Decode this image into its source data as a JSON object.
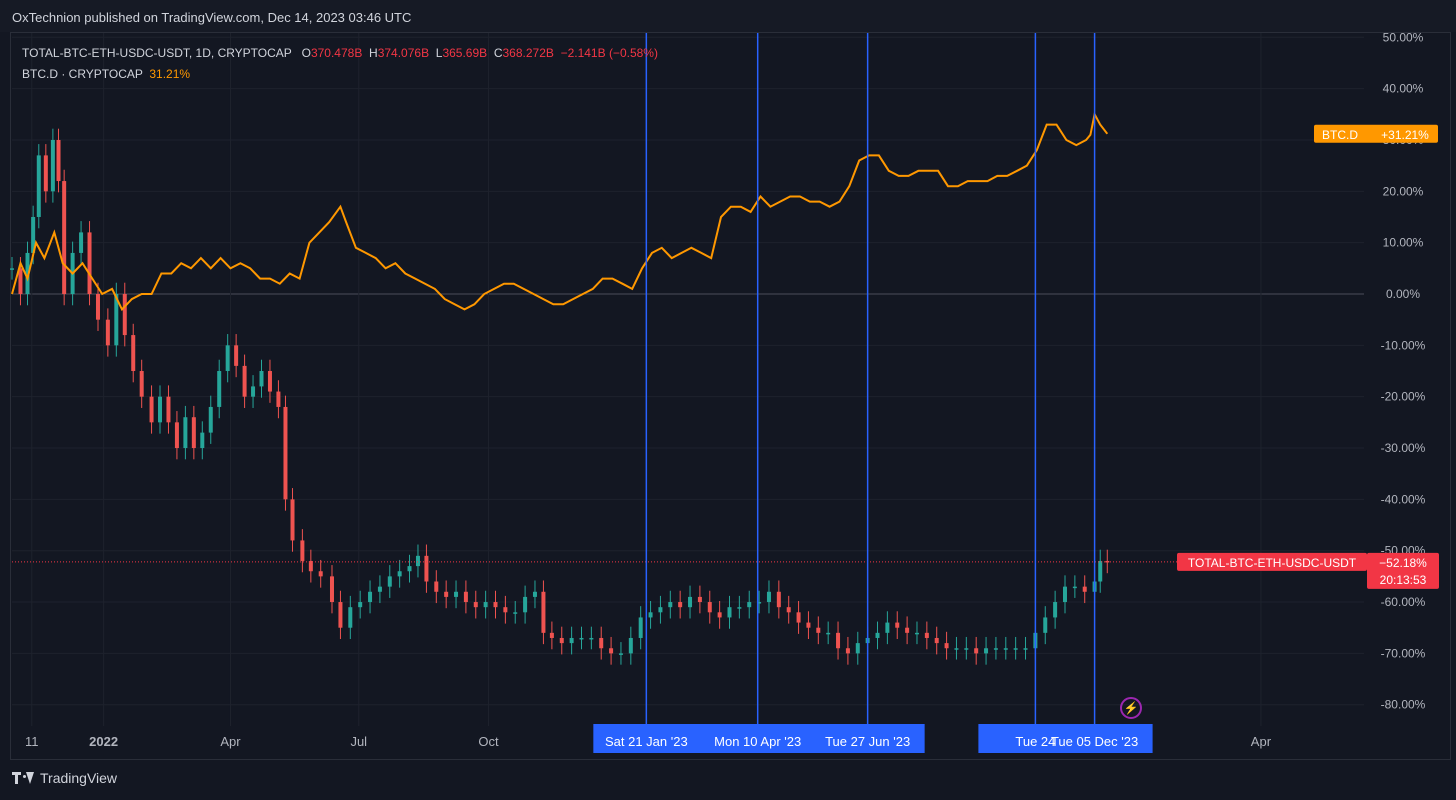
{
  "header": {
    "publisher_line": "OxTechnion published on TradingView.com, Dec 14, 2023 03:46 UTC"
  },
  "legend": {
    "main_symbol": "TOTAL-BTC-ETH-USDC-USDT, 1D, CRYPTOCAP",
    "o_label": "O",
    "o_value": "370.478B",
    "h_label": "H",
    "h_value": "374.076B",
    "l_label": "L",
    "l_value": "365.69B",
    "c_label": "C",
    "c_value": "368.272B",
    "change": "−2.141B (−0.58%)",
    "second_symbol": "BTC.D · CRYPTOCAP",
    "second_value": "31.21%"
  },
  "footer": {
    "brand": "TradingView",
    "flash_icon": "lightning-icon"
  },
  "colors": {
    "background": "#131722",
    "grid": "#1e222d",
    "btcd_line": "#ff9800",
    "up": "#26a69a",
    "down": "#ef5350",
    "marker": "#2962ff",
    "price_tag": "#f23645"
  },
  "chart_data": {
    "type": "line",
    "y_axis": {
      "scale": "percent",
      "ylim": [
        -85,
        50
      ],
      "ticks": [
        "50.00%",
        "40.00%",
        "30.00%",
        "20.00%",
        "10.00%",
        "0.00%",
        "-10.00%",
        "-20.00%",
        "-30.00%",
        "-40.00%",
        "-50.00%",
        "-60.00%",
        "-70.00%",
        "-80.00%"
      ],
      "tick_values": [
        50,
        40,
        30,
        20,
        10,
        0,
        -10,
        -20,
        -30,
        -40,
        -50,
        -60,
        -70,
        -80
      ]
    },
    "x_axis": {
      "range": [
        "2021-10-28",
        "2024-05-20"
      ],
      "ticks": [
        {
          "label": "11",
          "date": "2021-11-11"
        },
        {
          "label": "2022",
          "date": "2022-01-01"
        },
        {
          "label": "Apr",
          "date": "2022-04-01"
        },
        {
          "label": "Jul",
          "date": "2022-07-01"
        },
        {
          "label": "Oct",
          "date": "2022-10-01"
        },
        {
          "label": "Apr",
          "date": "2024-04-01"
        }
      ]
    },
    "grid": true,
    "series": [
      {
        "name": "BTC.D",
        "color": "#ff9800",
        "last_value_label": "+31.21%",
        "points": [
          [
            "2021-10-28",
            0
          ],
          [
            "2021-11-03",
            6
          ],
          [
            "2021-11-08",
            3
          ],
          [
            "2021-11-14",
            10
          ],
          [
            "2021-11-20",
            7
          ],
          [
            "2021-11-27",
            12
          ],
          [
            "2021-12-03",
            6
          ],
          [
            "2021-12-10",
            4
          ],
          [
            "2021-12-17",
            6
          ],
          [
            "2021-12-24",
            3
          ],
          [
            "2021-12-31",
            0
          ],
          [
            "2022-01-07",
            1
          ],
          [
            "2022-01-14",
            -3
          ],
          [
            "2022-01-21",
            -1
          ],
          [
            "2022-01-28",
            0
          ],
          [
            "2022-02-04",
            0
          ],
          [
            "2022-02-11",
            4
          ],
          [
            "2022-02-18",
            4
          ],
          [
            "2022-02-25",
            6
          ],
          [
            "2022-03-04",
            5
          ],
          [
            "2022-03-11",
            7
          ],
          [
            "2022-03-18",
            5
          ],
          [
            "2022-03-25",
            7
          ],
          [
            "2022-04-01",
            5
          ],
          [
            "2022-04-08",
            6
          ],
          [
            "2022-04-15",
            5
          ],
          [
            "2022-04-22",
            3
          ],
          [
            "2022-04-29",
            3
          ],
          [
            "2022-05-06",
            2
          ],
          [
            "2022-05-13",
            4
          ],
          [
            "2022-05-20",
            3
          ],
          [
            "2022-05-27",
            10
          ],
          [
            "2022-06-03",
            12
          ],
          [
            "2022-06-10",
            14
          ],
          [
            "2022-06-18",
            17
          ],
          [
            "2022-06-22",
            14
          ],
          [
            "2022-06-29",
            9
          ],
          [
            "2022-07-06",
            8
          ],
          [
            "2022-07-13",
            7
          ],
          [
            "2022-07-20",
            5
          ],
          [
            "2022-07-27",
            6
          ],
          [
            "2022-08-03",
            4
          ],
          [
            "2022-08-10",
            3
          ],
          [
            "2022-08-17",
            2
          ],
          [
            "2022-08-24",
            1
          ],
          [
            "2022-08-31",
            -1
          ],
          [
            "2022-09-07",
            -2
          ],
          [
            "2022-09-14",
            -3
          ],
          [
            "2022-09-21",
            -2
          ],
          [
            "2022-09-28",
            0
          ],
          [
            "2022-10-05",
            1
          ],
          [
            "2022-10-12",
            2
          ],
          [
            "2022-10-19",
            2
          ],
          [
            "2022-10-26",
            1
          ],
          [
            "2022-11-02",
            0
          ],
          [
            "2022-11-09",
            -1
          ],
          [
            "2022-11-16",
            -2
          ],
          [
            "2022-11-23",
            -2
          ],
          [
            "2022-11-30",
            -1
          ],
          [
            "2022-12-07",
            0
          ],
          [
            "2022-12-14",
            1
          ],
          [
            "2022-12-21",
            3
          ],
          [
            "2022-12-28",
            3
          ],
          [
            "2023-01-04",
            2
          ],
          [
            "2023-01-11",
            1
          ],
          [
            "2023-01-18",
            5
          ],
          [
            "2023-01-25",
            8
          ],
          [
            "2023-02-01",
            9
          ],
          [
            "2023-02-08",
            7
          ],
          [
            "2023-02-15",
            8
          ],
          [
            "2023-02-22",
            9
          ],
          [
            "2023-03-01",
            8
          ],
          [
            "2023-03-08",
            7
          ],
          [
            "2023-03-15",
            15
          ],
          [
            "2023-03-22",
            17
          ],
          [
            "2023-03-29",
            17
          ],
          [
            "2023-04-05",
            16
          ],
          [
            "2023-04-12",
            19
          ],
          [
            "2023-04-19",
            17
          ],
          [
            "2023-04-26",
            18
          ],
          [
            "2023-05-03",
            19
          ],
          [
            "2023-05-10",
            19
          ],
          [
            "2023-05-17",
            18
          ],
          [
            "2023-05-24",
            18
          ],
          [
            "2023-05-31",
            17
          ],
          [
            "2023-06-07",
            18
          ],
          [
            "2023-06-14",
            21
          ],
          [
            "2023-06-21",
            26
          ],
          [
            "2023-06-28",
            27
          ],
          [
            "2023-07-05",
            27
          ],
          [
            "2023-07-12",
            24
          ],
          [
            "2023-07-19",
            23
          ],
          [
            "2023-07-26",
            23
          ],
          [
            "2023-08-02",
            24
          ],
          [
            "2023-08-09",
            24
          ],
          [
            "2023-08-16",
            24
          ],
          [
            "2023-08-23",
            21
          ],
          [
            "2023-08-30",
            21
          ],
          [
            "2023-09-06",
            22
          ],
          [
            "2023-09-13",
            22
          ],
          [
            "2023-09-20",
            22
          ],
          [
            "2023-09-27",
            23
          ],
          [
            "2023-10-04",
            23
          ],
          [
            "2023-10-11",
            24
          ],
          [
            "2023-10-18",
            25
          ],
          [
            "2023-10-25",
            28
          ],
          [
            "2023-11-01",
            33
          ],
          [
            "2023-11-08",
            33
          ],
          [
            "2023-11-15",
            30
          ],
          [
            "2023-11-22",
            29
          ],
          [
            "2023-11-29",
            30
          ],
          [
            "2023-12-02",
            31
          ],
          [
            "2023-12-05",
            35
          ],
          [
            "2023-12-09",
            33
          ],
          [
            "2023-12-14",
            31.21
          ]
        ]
      },
      {
        "name": "TOTAL-BTC-ETH-USDC-USDT",
        "type": "candlestick_close",
        "up_color": "#26a69a",
        "down_color": "#ef5350",
        "last_value_label": "−52.18%",
        "countdown": "20:13:53",
        "points": [
          [
            "2021-10-28",
            5
          ],
          [
            "2021-11-03",
            0
          ],
          [
            "2021-11-08",
            8
          ],
          [
            "2021-11-12",
            15
          ],
          [
            "2021-11-16",
            27
          ],
          [
            "2021-11-21",
            20
          ],
          [
            "2021-11-26",
            30
          ],
          [
            "2021-11-30",
            22
          ],
          [
            "2021-12-04",
            0
          ],
          [
            "2021-12-10",
            8
          ],
          [
            "2021-12-16",
            12
          ],
          [
            "2021-12-22",
            0
          ],
          [
            "2021-12-28",
            -5
          ],
          [
            "2022-01-04",
            -10
          ],
          [
            "2022-01-10",
            0
          ],
          [
            "2022-01-16",
            -8
          ],
          [
            "2022-01-22",
            -15
          ],
          [
            "2022-01-28",
            -20
          ],
          [
            "2022-02-04",
            -25
          ],
          [
            "2022-02-10",
            -20
          ],
          [
            "2022-02-16",
            -25
          ],
          [
            "2022-02-22",
            -30
          ],
          [
            "2022-02-28",
            -24
          ],
          [
            "2022-03-06",
            -30
          ],
          [
            "2022-03-12",
            -27
          ],
          [
            "2022-03-18",
            -22
          ],
          [
            "2022-03-24",
            -15
          ],
          [
            "2022-03-30",
            -10
          ],
          [
            "2022-04-05",
            -14
          ],
          [
            "2022-04-11",
            -20
          ],
          [
            "2022-04-17",
            -18
          ],
          [
            "2022-04-23",
            -15
          ],
          [
            "2022-04-29",
            -19
          ],
          [
            "2022-05-05",
            -22
          ],
          [
            "2022-05-10",
            -40
          ],
          [
            "2022-05-15",
            -48
          ],
          [
            "2022-05-22",
            -52
          ],
          [
            "2022-05-28",
            -54
          ],
          [
            "2022-06-04",
            -55
          ],
          [
            "2022-06-12",
            -60
          ],
          [
            "2022-06-18",
            -65
          ],
          [
            "2022-06-25",
            -61
          ],
          [
            "2022-07-02",
            -60
          ],
          [
            "2022-07-09",
            -58
          ],
          [
            "2022-07-16",
            -57
          ],
          [
            "2022-07-23",
            -55
          ],
          [
            "2022-07-30",
            -54
          ],
          [
            "2022-08-06",
            -53
          ],
          [
            "2022-08-12",
            -51
          ],
          [
            "2022-08-18",
            -56
          ],
          [
            "2022-08-25",
            -58
          ],
          [
            "2022-09-01",
            -59
          ],
          [
            "2022-09-08",
            -58
          ],
          [
            "2022-09-15",
            -60
          ],
          [
            "2022-09-22",
            -61
          ],
          [
            "2022-09-29",
            -60
          ],
          [
            "2022-10-06",
            -61
          ],
          [
            "2022-10-13",
            -62
          ],
          [
            "2022-10-20",
            -62
          ],
          [
            "2022-10-27",
            -59
          ],
          [
            "2022-11-03",
            -58
          ],
          [
            "2022-11-09",
            -66
          ],
          [
            "2022-11-15",
            -67
          ],
          [
            "2022-11-22",
            -68
          ],
          [
            "2022-11-29",
            -67
          ],
          [
            "2022-12-06",
            -67
          ],
          [
            "2022-12-13",
            -67
          ],
          [
            "2022-12-20",
            -69
          ],
          [
            "2022-12-27",
            -70
          ],
          [
            "2023-01-03",
            -70
          ],
          [
            "2023-01-10",
            -67
          ],
          [
            "2023-01-17",
            -63
          ],
          [
            "2023-01-24",
            -62
          ],
          [
            "2023-01-31",
            -61
          ],
          [
            "2023-02-07",
            -60
          ],
          [
            "2023-02-14",
            -61
          ],
          [
            "2023-02-21",
            -59
          ],
          [
            "2023-02-28",
            -60
          ],
          [
            "2023-03-07",
            -62
          ],
          [
            "2023-03-14",
            -63
          ],
          [
            "2023-03-21",
            -61
          ],
          [
            "2023-03-28",
            -61
          ],
          [
            "2023-04-04",
            -60
          ],
          [
            "2023-04-11",
            -60
          ],
          [
            "2023-04-18",
            -58
          ],
          [
            "2023-04-25",
            -61
          ],
          [
            "2023-05-02",
            -62
          ],
          [
            "2023-05-09",
            -64
          ],
          [
            "2023-05-16",
            -65
          ],
          [
            "2023-05-23",
            -66
          ],
          [
            "2023-05-30",
            -66
          ],
          [
            "2023-06-06",
            -69
          ],
          [
            "2023-06-13",
            -70
          ],
          [
            "2023-06-20",
            -68
          ],
          [
            "2023-06-27",
            -67
          ],
          [
            "2023-07-04",
            -66
          ],
          [
            "2023-07-11",
            -64
          ],
          [
            "2023-07-18",
            -65
          ],
          [
            "2023-07-25",
            -66
          ],
          [
            "2023-08-01",
            -66
          ],
          [
            "2023-08-08",
            -67
          ],
          [
            "2023-08-15",
            -68
          ],
          [
            "2023-08-22",
            -69
          ],
          [
            "2023-08-29",
            -69
          ],
          [
            "2023-09-05",
            -69
          ],
          [
            "2023-09-12",
            -70
          ],
          [
            "2023-09-19",
            -69
          ],
          [
            "2023-09-26",
            -69
          ],
          [
            "2023-10-03",
            -69
          ],
          [
            "2023-10-10",
            -69
          ],
          [
            "2023-10-17",
            -69
          ],
          [
            "2023-10-24",
            -66
          ],
          [
            "2023-10-31",
            -63
          ],
          [
            "2023-11-07",
            -60
          ],
          [
            "2023-11-14",
            -57
          ],
          [
            "2023-11-21",
            -57
          ],
          [
            "2023-11-28",
            -58
          ],
          [
            "2023-12-05",
            -56
          ],
          [
            "2023-12-09",
            -52
          ],
          [
            "2023-12-14",
            -52.18
          ]
        ]
      }
    ],
    "vertical_markers": [
      {
        "date": "2023-01-21",
        "label": "Sat 21 Jan '23"
      },
      {
        "date": "2023-04-10",
        "label": "Mon 10 Apr '23"
      },
      {
        "date": "2023-06-27",
        "label": "Tue 27 Jun '23"
      },
      {
        "date": "2023-10-24",
        "label": "Tue 24"
      },
      {
        "date": "2023-12-05",
        "label": "Tue 05 Dec '23"
      }
    ],
    "axis_labels": {
      "btcd_tag": "BTC.D",
      "total_tag": "TOTAL-BTC-ETH-USDC-USDT"
    }
  }
}
